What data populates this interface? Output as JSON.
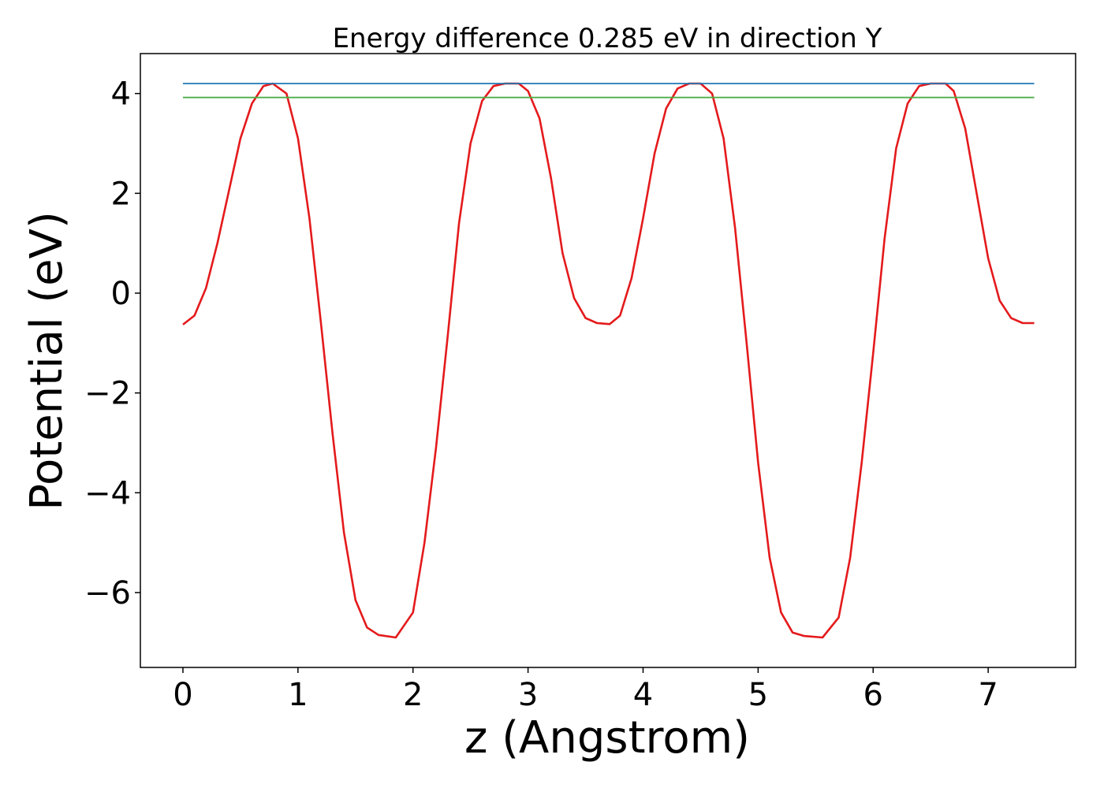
{
  "chart_data": {
    "type": "line",
    "title": "Energy difference 0.285 eV in direction Y",
    "xlabel": "z (Angstrom)",
    "ylabel": "Potential (eV)",
    "xlim": [
      -0.37,
      7.76
    ],
    "ylim": [
      -7.5,
      4.8
    ],
    "grid": false,
    "x_ticks": [
      {
        "value": 0,
        "label": "0"
      },
      {
        "value": 1,
        "label": "1"
      },
      {
        "value": 2,
        "label": "2"
      },
      {
        "value": 3,
        "label": "3"
      },
      {
        "value": 4,
        "label": "4"
      },
      {
        "value": 5,
        "label": "5"
      },
      {
        "value": 6,
        "label": "6"
      },
      {
        "value": 7,
        "label": "7"
      }
    ],
    "y_ticks": [
      {
        "value": 4,
        "label": "4"
      },
      {
        "value": 2,
        "label": "2"
      },
      {
        "value": 0,
        "label": "0"
      },
      {
        "value": -2,
        "label": "−2"
      },
      {
        "value": -4,
        "label": "−4"
      },
      {
        "value": -6,
        "label": "−6"
      }
    ],
    "series": [
      {
        "color": "#e41a1c",
        "x": [
          0.0,
          0.1,
          0.2,
          0.3,
          0.4,
          0.5,
          0.6,
          0.7,
          0.78,
          0.9,
          1.0,
          1.1,
          1.2,
          1.3,
          1.4,
          1.5,
          1.6,
          1.7,
          1.85,
          2.0,
          2.1,
          2.2,
          2.3,
          2.4,
          2.5,
          2.6,
          2.7,
          2.8,
          2.92,
          3.0,
          3.1,
          3.2,
          3.3,
          3.4,
          3.5,
          3.6,
          3.71,
          3.8,
          3.9,
          4.0,
          4.1,
          4.2,
          4.3,
          4.4,
          4.5,
          4.6,
          4.7,
          4.8,
          4.9,
          5.0,
          5.1,
          5.2,
          5.3,
          5.4,
          5.56,
          5.7,
          5.8,
          5.9,
          6.0,
          6.1,
          6.2,
          6.3,
          6.4,
          6.5,
          6.63,
          6.7,
          6.8,
          6.9,
          7.0,
          7.1,
          7.2,
          7.3,
          7.4
        ],
        "y": [
          -0.63,
          -0.45,
          0.1,
          1.0,
          2.05,
          3.1,
          3.8,
          4.15,
          4.2,
          4.0,
          3.1,
          1.5,
          -0.6,
          -2.8,
          -4.8,
          -6.15,
          -6.7,
          -6.85,
          -6.9,
          -6.4,
          -5.0,
          -3.1,
          -0.9,
          1.4,
          3.0,
          3.85,
          4.15,
          4.2,
          4.2,
          4.05,
          3.5,
          2.3,
          0.8,
          -0.1,
          -0.5,
          -0.6,
          -0.62,
          -0.45,
          0.3,
          1.5,
          2.8,
          3.7,
          4.1,
          4.2,
          4.2,
          4.0,
          3.1,
          1.3,
          -1.0,
          -3.4,
          -5.3,
          -6.4,
          -6.8,
          -6.87,
          -6.9,
          -6.5,
          -5.3,
          -3.4,
          -1.2,
          1.1,
          2.9,
          3.8,
          4.15,
          4.2,
          4.2,
          4.05,
          3.3,
          2.0,
          0.7,
          -0.15,
          -0.5,
          -0.6,
          -0.6
        ]
      },
      {
        "color": "#1f77b4",
        "x": [
          0,
          7.4
        ],
        "y": [
          4.2,
          4.2
        ]
      },
      {
        "color": "#4daf4a",
        "x": [
          0,
          7.4
        ],
        "y": [
          3.92,
          3.92
        ]
      }
    ]
  }
}
